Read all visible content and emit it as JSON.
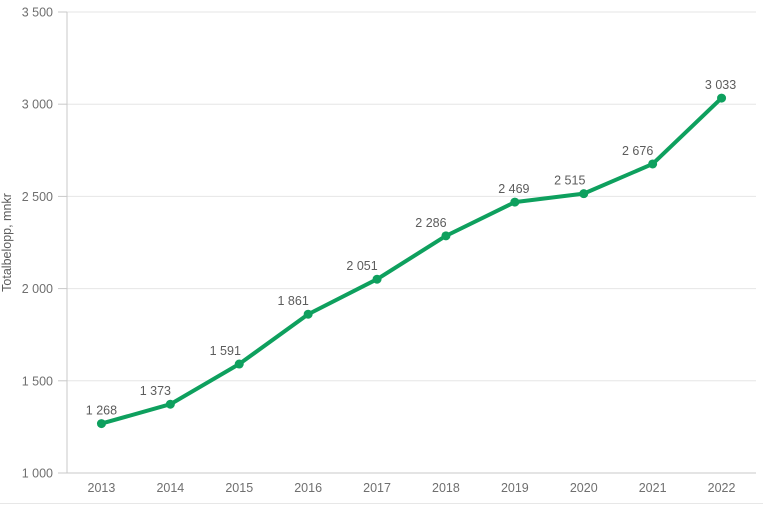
{
  "chart": {
    "y_axis_title": "Totalbelopp, mnkr"
  },
  "chart_data": {
    "type": "line",
    "title": "",
    "categories": [
      "2013",
      "2014",
      "2015",
      "2016",
      "2017",
      "2018",
      "2019",
      "2020",
      "2021",
      "2022"
    ],
    "values": [
      1268,
      1373,
      1591,
      1861,
      2051,
      2286,
      2469,
      2515,
      2676,
      3033
    ],
    "value_labels": [
      "1 268",
      "1 373",
      "1 591",
      "1 861",
      "2 051",
      "2 286",
      "2 469",
      "2 515",
      "2 676",
      "3 033"
    ],
    "xlabel": "",
    "ylabel": "Totalbelopp, mnkr",
    "ylim": [
      1000,
      3500
    ],
    "yticks": [
      1000,
      1500,
      2000,
      2500,
      3000,
      3500
    ],
    "ytick_labels": [
      "1 000",
      "1 500",
      "2 000",
      "2 500",
      "3 000",
      "3 500"
    ],
    "grid": "horizontal",
    "legend": "none",
    "colors": {
      "line": "#0ea05e",
      "marker": "#0ea05e",
      "gridline": "#e6e6e6",
      "axis": "#c9c9c9",
      "tick_text": "#6f6f6f",
      "label_text": "#5c5c5c"
    },
    "label_dx": [
      0,
      -15,
      -14,
      -15,
      -15,
      -15,
      -1,
      -14,
      -15,
      -1
    ]
  }
}
